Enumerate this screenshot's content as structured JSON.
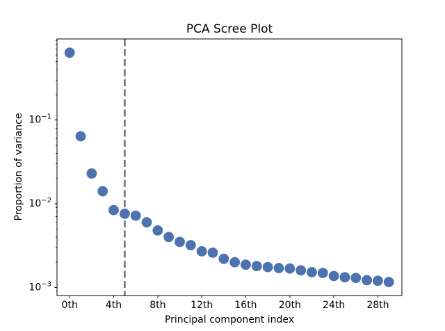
{
  "window": {
    "background": "#ffffff"
  },
  "chart_data": {
    "type": "scatter",
    "title": "PCA Scree Plot",
    "xlabel": "Principal component index",
    "ylabel": "Proportion of variance",
    "x": [
      0,
      1,
      2,
      3,
      4,
      5,
      6,
      7,
      8,
      9,
      10,
      11,
      12,
      13,
      14,
      15,
      16,
      17,
      18,
      19,
      20,
      21,
      22,
      23,
      24,
      25,
      26,
      27,
      28,
      29
    ],
    "y": [
      0.64,
      0.064,
      0.023,
      0.0141,
      0.0084,
      0.0076,
      0.0072,
      0.006,
      0.0048,
      0.004,
      0.0035,
      0.0032,
      0.0027,
      0.0026,
      0.0022,
      0.002,
      0.00187,
      0.0018,
      0.00175,
      0.0017,
      0.00168,
      0.0016,
      0.00152,
      0.00149,
      0.00137,
      0.00132,
      0.0013,
      0.00122,
      0.0012,
      0.00116
    ],
    "x_ticks": {
      "positions": [
        0,
        4,
        8,
        12,
        16,
        20,
        24,
        28
      ],
      "labels": [
        "0th",
        "4th",
        "8th",
        "12th",
        "16th",
        "20th",
        "24th",
        "28th"
      ]
    },
    "y_scale": "log",
    "y_ticks": {
      "values": [
        0.1,
        0.01,
        0.001
      ],
      "labels": [
        "10⁻¹",
        "10⁻²",
        "10⁻³"
      ],
      "exponents": [
        -1,
        -2,
        -3
      ]
    },
    "xlim": [
      -1.15,
      30.2
    ],
    "ylim": [
      0.00081,
      0.933
    ],
    "grid": false,
    "marker_color": "#4c72b0",
    "marker_radius_px": 7.4,
    "vline": {
      "x": 5,
      "style": "dashed",
      "color": "#7b7b7b",
      "width": 2.8
    }
  }
}
